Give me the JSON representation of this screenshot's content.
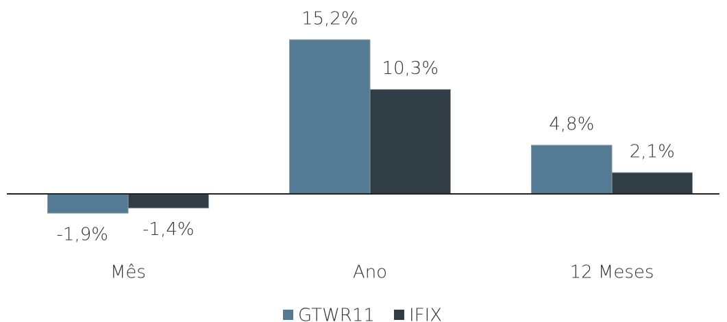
{
  "chart_data": {
    "type": "bar",
    "categories": [
      "Mês",
      "Ano",
      "12 Meses"
    ],
    "series": [
      {
        "name": "GTWR11",
        "color": "#557b94",
        "values": [
          -1.9,
          15.2,
          4.8
        ],
        "value_labels": [
          "-1,9%",
          "15,2%",
          "4,8%"
        ]
      },
      {
        "name": "IFIX",
        "color": "#313d44",
        "values": [
          -1.4,
          10.3,
          2.1
        ],
        "value_labels": [
          "-1,4%",
          "10,3%",
          "2,1%"
        ]
      }
    ],
    "legend": "bottom"
  }
}
